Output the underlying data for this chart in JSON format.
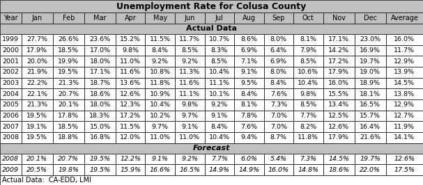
{
  "title": "Unemployment Rate for Colusa County",
  "columns": [
    "Year",
    "Jan",
    "Feb",
    "Mar",
    "Apr",
    "May",
    "Jun",
    "Jul",
    "Aug",
    "Sep",
    "Oct",
    "Nov",
    "Dec",
    "Average"
  ],
  "actual_header": "Actual Data",
  "forecast_header": "Forecast",
  "footer": "Actual Data:  CA-EDD, LMI",
  "actual_data": [
    [
      "1999",
      "27.7%",
      "26.6%",
      "23.6%",
      "15.2%",
      "11.5%",
      "11.7%",
      "10.7%",
      "8.6%",
      "8.0%",
      "8.1%",
      "17.1%",
      "23.0%",
      "16.0%"
    ],
    [
      "2000",
      "17.9%",
      "18.5%",
      "17.0%",
      "9.8%",
      "8.4%",
      "8.5%",
      "8.3%",
      "6.9%",
      "6.4%",
      "7.9%",
      "14.2%",
      "16.9%",
      "11.7%"
    ],
    [
      "2001",
      "20.0%",
      "19.9%",
      "18.0%",
      "11.0%",
      "9.2%",
      "9.2%",
      "8.5%",
      "7.1%",
      "6.9%",
      "8.5%",
      "17.2%",
      "19.7%",
      "12.9%"
    ],
    [
      "2002",
      "21.9%",
      "19.5%",
      "17.1%",
      "11.6%",
      "10.8%",
      "11.3%",
      "10.4%",
      "9.1%",
      "8.0%",
      "10.6%",
      "17.9%",
      "19.0%",
      "13.9%"
    ],
    [
      "2003",
      "22.2%",
      "21.3%",
      "18.7%",
      "13.6%",
      "11.8%",
      "11.6%",
      "11.1%",
      "9.5%",
      "8.4%",
      "10.4%",
      "16.0%",
      "18.9%",
      "14.5%"
    ],
    [
      "2004",
      "22.1%",
      "20.7%",
      "18.6%",
      "12.6%",
      "10.9%",
      "11.1%",
      "10.1%",
      "8.4%",
      "7.6%",
      "9.8%",
      "15.5%",
      "18.1%",
      "13.8%"
    ],
    [
      "2005",
      "21.3%",
      "20.1%",
      "18.0%",
      "12.3%",
      "10.4%",
      "9.8%",
      "9.2%",
      "8.1%",
      "7.3%",
      "8.5%",
      "13.4%",
      "16.5%",
      "12.9%"
    ],
    [
      "2006",
      "19.5%",
      "17.8%",
      "18.3%",
      "17.2%",
      "10.2%",
      "9.7%",
      "9.1%",
      "7.8%",
      "7.0%",
      "7.7%",
      "12.5%",
      "15.7%",
      "12.7%"
    ],
    [
      "2007",
      "19.1%",
      "18.5%",
      "15.0%",
      "11.5%",
      "9.7%",
      "9.1%",
      "8.4%",
      "7.6%",
      "7.0%",
      "8.2%",
      "12.6%",
      "16.4%",
      "11.9%"
    ],
    [
      "2008",
      "19.5%",
      "18.8%",
      "16.8%",
      "12.0%",
      "11.0%",
      "11.0%",
      "10.4%",
      "9.4%",
      "8.7%",
      "11.8%",
      "17.9%",
      "21.6%",
      "14.1%"
    ]
  ],
  "forecast_data": [
    [
      "2008",
      "20.1%",
      "20.7%",
      "19.5%",
      "12.2%",
      "9.1%",
      "9.2%",
      "7.7%",
      "6.0%",
      "5.4%",
      "7.3%",
      "14.5%",
      "19.7%",
      "12.6%"
    ],
    [
      "2009",
      "20.5%",
      "19.8%",
      "19.5%",
      "15.9%",
      "16.6%",
      "16.5%",
      "14.9%",
      "14.9%",
      "16.0%",
      "14.8%",
      "18.6%",
      "22.0%",
      "17.5%"
    ]
  ],
  "title_bg": "#c0c0c0",
  "header_bg": "#c0c0c0",
  "section_bg": "#c0c0c0",
  "actual_row_bg": "#ffffff",
  "forecast_row_bg": "#ffffff",
  "border_color": "#000000",
  "text_color": "#000000",
  "title_fontsize": 9,
  "header_fontsize": 7,
  "data_fontsize": 6.8,
  "section_fontsize": 8,
  "footer_fontsize": 7
}
